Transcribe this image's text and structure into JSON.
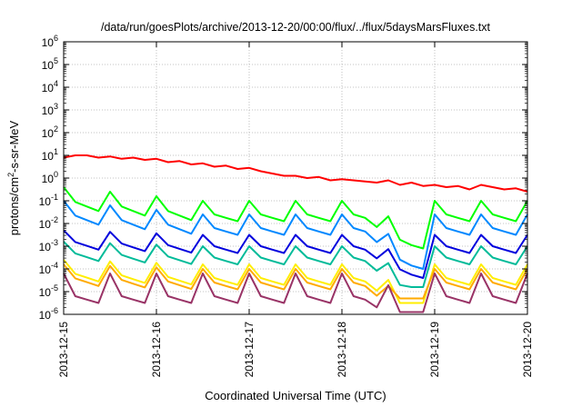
{
  "chart_data": {
    "type": "line",
    "title": "/data/run/goesPlots/archive/2013-12-20/00:00/flux/../flux/5daysMarsFluxes.txt",
    "xlabel": "Coordinated Universal Time (UTC)",
    "ylabel_parts": [
      "protons/cm",
      "2",
      "-s-sr-MeV"
    ],
    "y_scale": "log",
    "ylim": [
      1e-06,
      1000000.0
    ],
    "y_tick_exponents": [
      -6,
      -5,
      -4,
      -3,
      -2,
      -1,
      0,
      1,
      2,
      3,
      4,
      5,
      6
    ],
    "y_tick_base": "10",
    "xlim_days": [
      0,
      5
    ],
    "x_tick_labels": [
      "2013-12-15",
      "2013-12-16",
      "2013-12-17",
      "2013-12-18",
      "2013-12-19",
      "2013-12-20"
    ],
    "grid": true,
    "legend": "none",
    "sample_step_hours": 3,
    "series": [
      {
        "color": "#ff0000",
        "log10_values": [
          0.9,
          1.0,
          1.0,
          0.9,
          0.95,
          0.85,
          0.9,
          0.8,
          0.85,
          0.7,
          0.75,
          0.6,
          0.65,
          0.5,
          0.55,
          0.4,
          0.45,
          0.3,
          0.2,
          0.1,
          0.1,
          0.0,
          0.05,
          -0.1,
          -0.05,
          -0.1,
          -0.15,
          -0.2,
          -0.1,
          -0.3,
          -0.2,
          -0.35,
          -0.3,
          -0.4,
          -0.35,
          -0.5,
          -0.3,
          -0.4,
          -0.5,
          -0.45,
          -0.6,
          -0.45,
          -0.55,
          -0.5,
          -0.6,
          -0.55,
          -0.7,
          -0.6,
          -0.7,
          -0.65,
          -0.75,
          -0.7,
          -0.8,
          -0.6,
          -0.7,
          -0.75,
          -0.8,
          -0.75,
          -0.85,
          -0.7,
          -0.8,
          -0.75,
          -0.85,
          -0.55,
          -0.6,
          -0.7,
          -0.8,
          -0.9,
          -1.1,
          -1.2,
          -1.3,
          -1.25,
          -1.4,
          -1.3,
          -1.2,
          -1.1,
          -1.15,
          -1.2,
          -1.05,
          -1.15,
          -1.0,
          -1.1,
          -1.0,
          -0.9,
          -0.6,
          -0.7,
          -0.8,
          -0.75,
          -0.9,
          -0.7,
          -0.8,
          -0.6,
          -0.7,
          -0.8,
          -0.7,
          -0.6,
          -0.7,
          -0.8,
          -0.65,
          -0.75,
          -0.9,
          -0.8,
          -0.7,
          -0.6,
          -0.75,
          -0.8,
          -0.7,
          -0.85,
          -0.75,
          -0.8,
          -0.85,
          -0.9,
          -0.8,
          -0.75,
          -0.55,
          -0.7,
          -0.75,
          -0.65,
          -0.55,
          -0.7,
          -0.8,
          -0.85,
          -0.9,
          -0.85,
          -0.95,
          -0.9,
          -0.85,
          -0.8,
          -0.9,
          -0.95,
          -0.9,
          -1.0,
          -1.05,
          -1.0,
          -1.1,
          -1.0,
          -1.0,
          -0.95,
          -1.0,
          -0.95,
          -1.1
        ]
      },
      {
        "color": "#00ff00",
        "baseline": -1.0,
        "peak": -0.4,
        "drift": -0.6,
        "cycle_pts": 4,
        "dip_depth": 1.2,
        "dip_floor": -3.2
      },
      {
        "color": "#0088ff",
        "baseline": -1.6,
        "peak": -1.0,
        "drift": -0.6,
        "cycle_pts": 4,
        "dip_depth": 1.5,
        "dip_floor": -4.0
      },
      {
        "color": "#0000dd",
        "baseline": -2.8,
        "peak": -2.3,
        "drift": -0.2,
        "cycle_pts": 4,
        "dip_depth": 1.1,
        "dip_floor": -4.4
      },
      {
        "color": "#00bb99",
        "baseline": -3.3,
        "peak": -2.8,
        "drift": -0.2,
        "cycle_pts": 4,
        "dip_depth": 1.3,
        "dip_floor": -4.8
      },
      {
        "color": "#ffee00",
        "baseline": -4.2,
        "peak": -3.6,
        "drift": -0.2,
        "cycle_pts": 4,
        "dip_depth": 1.2,
        "dip_floor": -5.5
      },
      {
        "color": "#ffaa00",
        "baseline": -4.4,
        "peak": -3.8,
        "drift": -0.2,
        "cycle_pts": 4,
        "dip_depth": 1.3,
        "dip_floor": -5.3
      },
      {
        "color": "#993366",
        "baseline": -5.2,
        "peak": -4.2,
        "drift": 0.0,
        "cycle_pts": 4,
        "dip_depth": 0.9,
        "dip_floor": -5.9
      }
    ]
  }
}
